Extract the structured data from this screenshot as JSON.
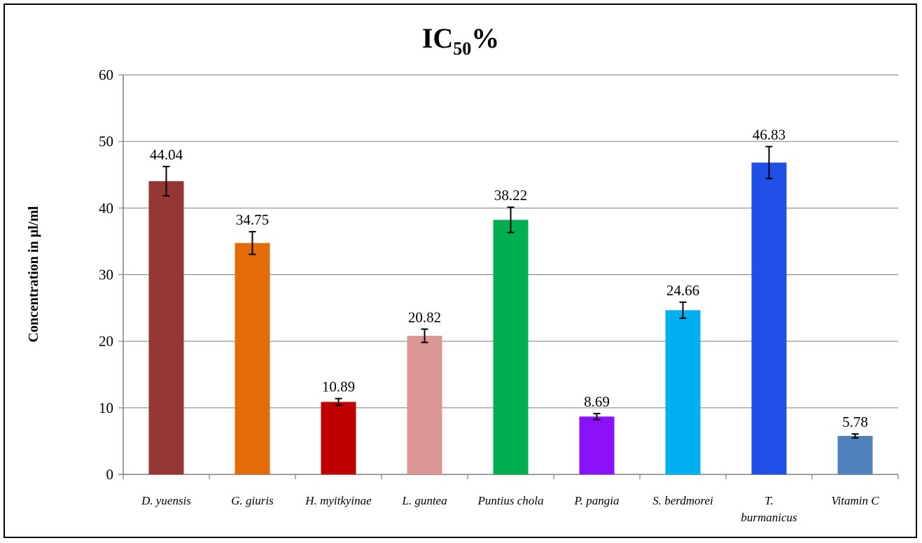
{
  "chart_data": {
    "type": "bar",
    "title": "IC",
    "title_subscript": "50",
    "title_suffix": "%",
    "ylabel": "Concentration in µl/ml",
    "xlabel": "",
    "ylim": [
      0,
      60
    ],
    "yticks": [
      0,
      10,
      20,
      30,
      40,
      50,
      60
    ],
    "grid": true,
    "categories": [
      "D. yuensis",
      "G. giuris",
      "H. myitkyinae",
      "L. guntea",
      "Puntius chola",
      "P. pangia",
      "S. berdmorei",
      "T. burmanicus",
      "Vitamin C"
    ],
    "category_label_lines": [
      [
        "D. yuensis"
      ],
      [
        "G. giuris"
      ],
      [
        "H. myitkyinae"
      ],
      [
        "L. guntea"
      ],
      [
        "Puntius chola"
      ],
      [
        "P. pangia"
      ],
      [
        "S. berdmorei"
      ],
      [
        "T.",
        "burmanicus"
      ],
      [
        "Vitamin C"
      ]
    ],
    "values": [
      44.04,
      34.75,
      10.89,
      20.82,
      38.22,
      8.69,
      24.66,
      46.83,
      5.78
    ],
    "value_labels": [
      "44.04",
      "34.75",
      "10.89",
      "20.82",
      "38.22",
      "8.69",
      "24.66",
      "46.83",
      "5.78"
    ],
    "errors": [
      2.2,
      1.7,
      0.5,
      1.0,
      1.9,
      0.45,
      1.2,
      2.4,
      0.3
    ],
    "colors": [
      "#943634",
      "#E36C09",
      "#C00000",
      "#D99694",
      "#00B050",
      "#8B12F8",
      "#00B0F0",
      "#1F4FE6",
      "#4F81BD"
    ]
  }
}
